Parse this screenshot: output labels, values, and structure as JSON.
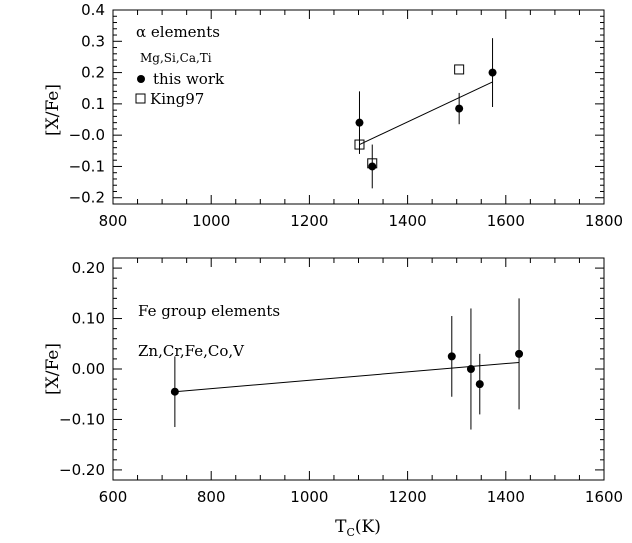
{
  "chart_data": [
    {
      "type": "scatter",
      "xlabel": "",
      "ylabel": "[X/Fe]",
      "xlim": [
        800,
        1800
      ],
      "ylim": [
        -0.22,
        0.4
      ],
      "xticks": [
        800,
        1000,
        1200,
        1400,
        1600,
        1800
      ],
      "yticks": [
        -0.2,
        -0.1,
        0.0,
        0.1,
        0.2,
        0.3,
        0.4
      ],
      "xtick_labels": [
        "800",
        "1000",
        "1200",
        "1400",
        "1600",
        "1800"
      ],
      "ytick_labels": [
        "−0.2",
        "−0.1",
        "−0.0",
        "0.1",
        "0.2",
        "0.3",
        "0.4"
      ],
      "annotations": [
        "α elements",
        "Mg,Si,Ca,Ti"
      ],
      "series": [
        {
          "name": "this work",
          "marker": "filled-circle",
          "points": [
            {
              "x": 1302,
              "y": 0.04,
              "err": 0.1
            },
            {
              "x": 1328,
              "y": -0.1,
              "err": 0.07
            },
            {
              "x": 1505,
              "y": 0.085,
              "err": 0.05
            },
            {
              "x": 1573,
              "y": 0.2,
              "err": 0.11
            }
          ]
        },
        {
          "name": "King97",
          "marker": "open-square",
          "points": [
            {
              "x": 1302,
              "y": -0.03
            },
            {
              "x": 1328,
              "y": -0.09
            },
            {
              "x": 1505,
              "y": 0.21
            }
          ]
        }
      ],
      "fit_line": {
        "x": [
          1302,
          1573
        ],
        "y": [
          -0.03,
          0.17
        ]
      }
    },
    {
      "type": "scatter",
      "xlabel": "T",
      "xlabel_sub": "C",
      "xlabel_tail": "(K)",
      "ylabel": "[X/Fe]",
      "xlim": [
        600,
        1600
      ],
      "ylim": [
        -0.22,
        0.22
      ],
      "xticks": [
        600,
        800,
        1000,
        1200,
        1400,
        1600
      ],
      "yticks": [
        -0.2,
        -0.1,
        0.0,
        0.1,
        0.2
      ],
      "xtick_labels": [
        "600",
        "800",
        "1000",
        "1200",
        "1400",
        "1600"
      ],
      "ytick_labels": [
        "−0.20",
        "−0.10",
        "0.00",
        "0.10",
        "0.20"
      ],
      "annotations": [
        "Fe group elements",
        "Zn,Cr,Fe,Co,V"
      ],
      "series": [
        {
          "name": "",
          "marker": "filled-circle",
          "points": [
            {
              "x": 726,
              "y": -0.045,
              "err": 0.07
            },
            {
              "x": 1290,
              "y": 0.025,
              "err": 0.08
            },
            {
              "x": 1329,
              "y": 0.0,
              "err": 0.12
            },
            {
              "x": 1347,
              "y": -0.03,
              "err": 0.06
            },
            {
              "x": 1427,
              "y": 0.03,
              "err": 0.11
            }
          ]
        }
      ],
      "fit_line": {
        "x": [
          726,
          1427
        ],
        "y": [
          -0.045,
          0.013
        ]
      }
    }
  ]
}
